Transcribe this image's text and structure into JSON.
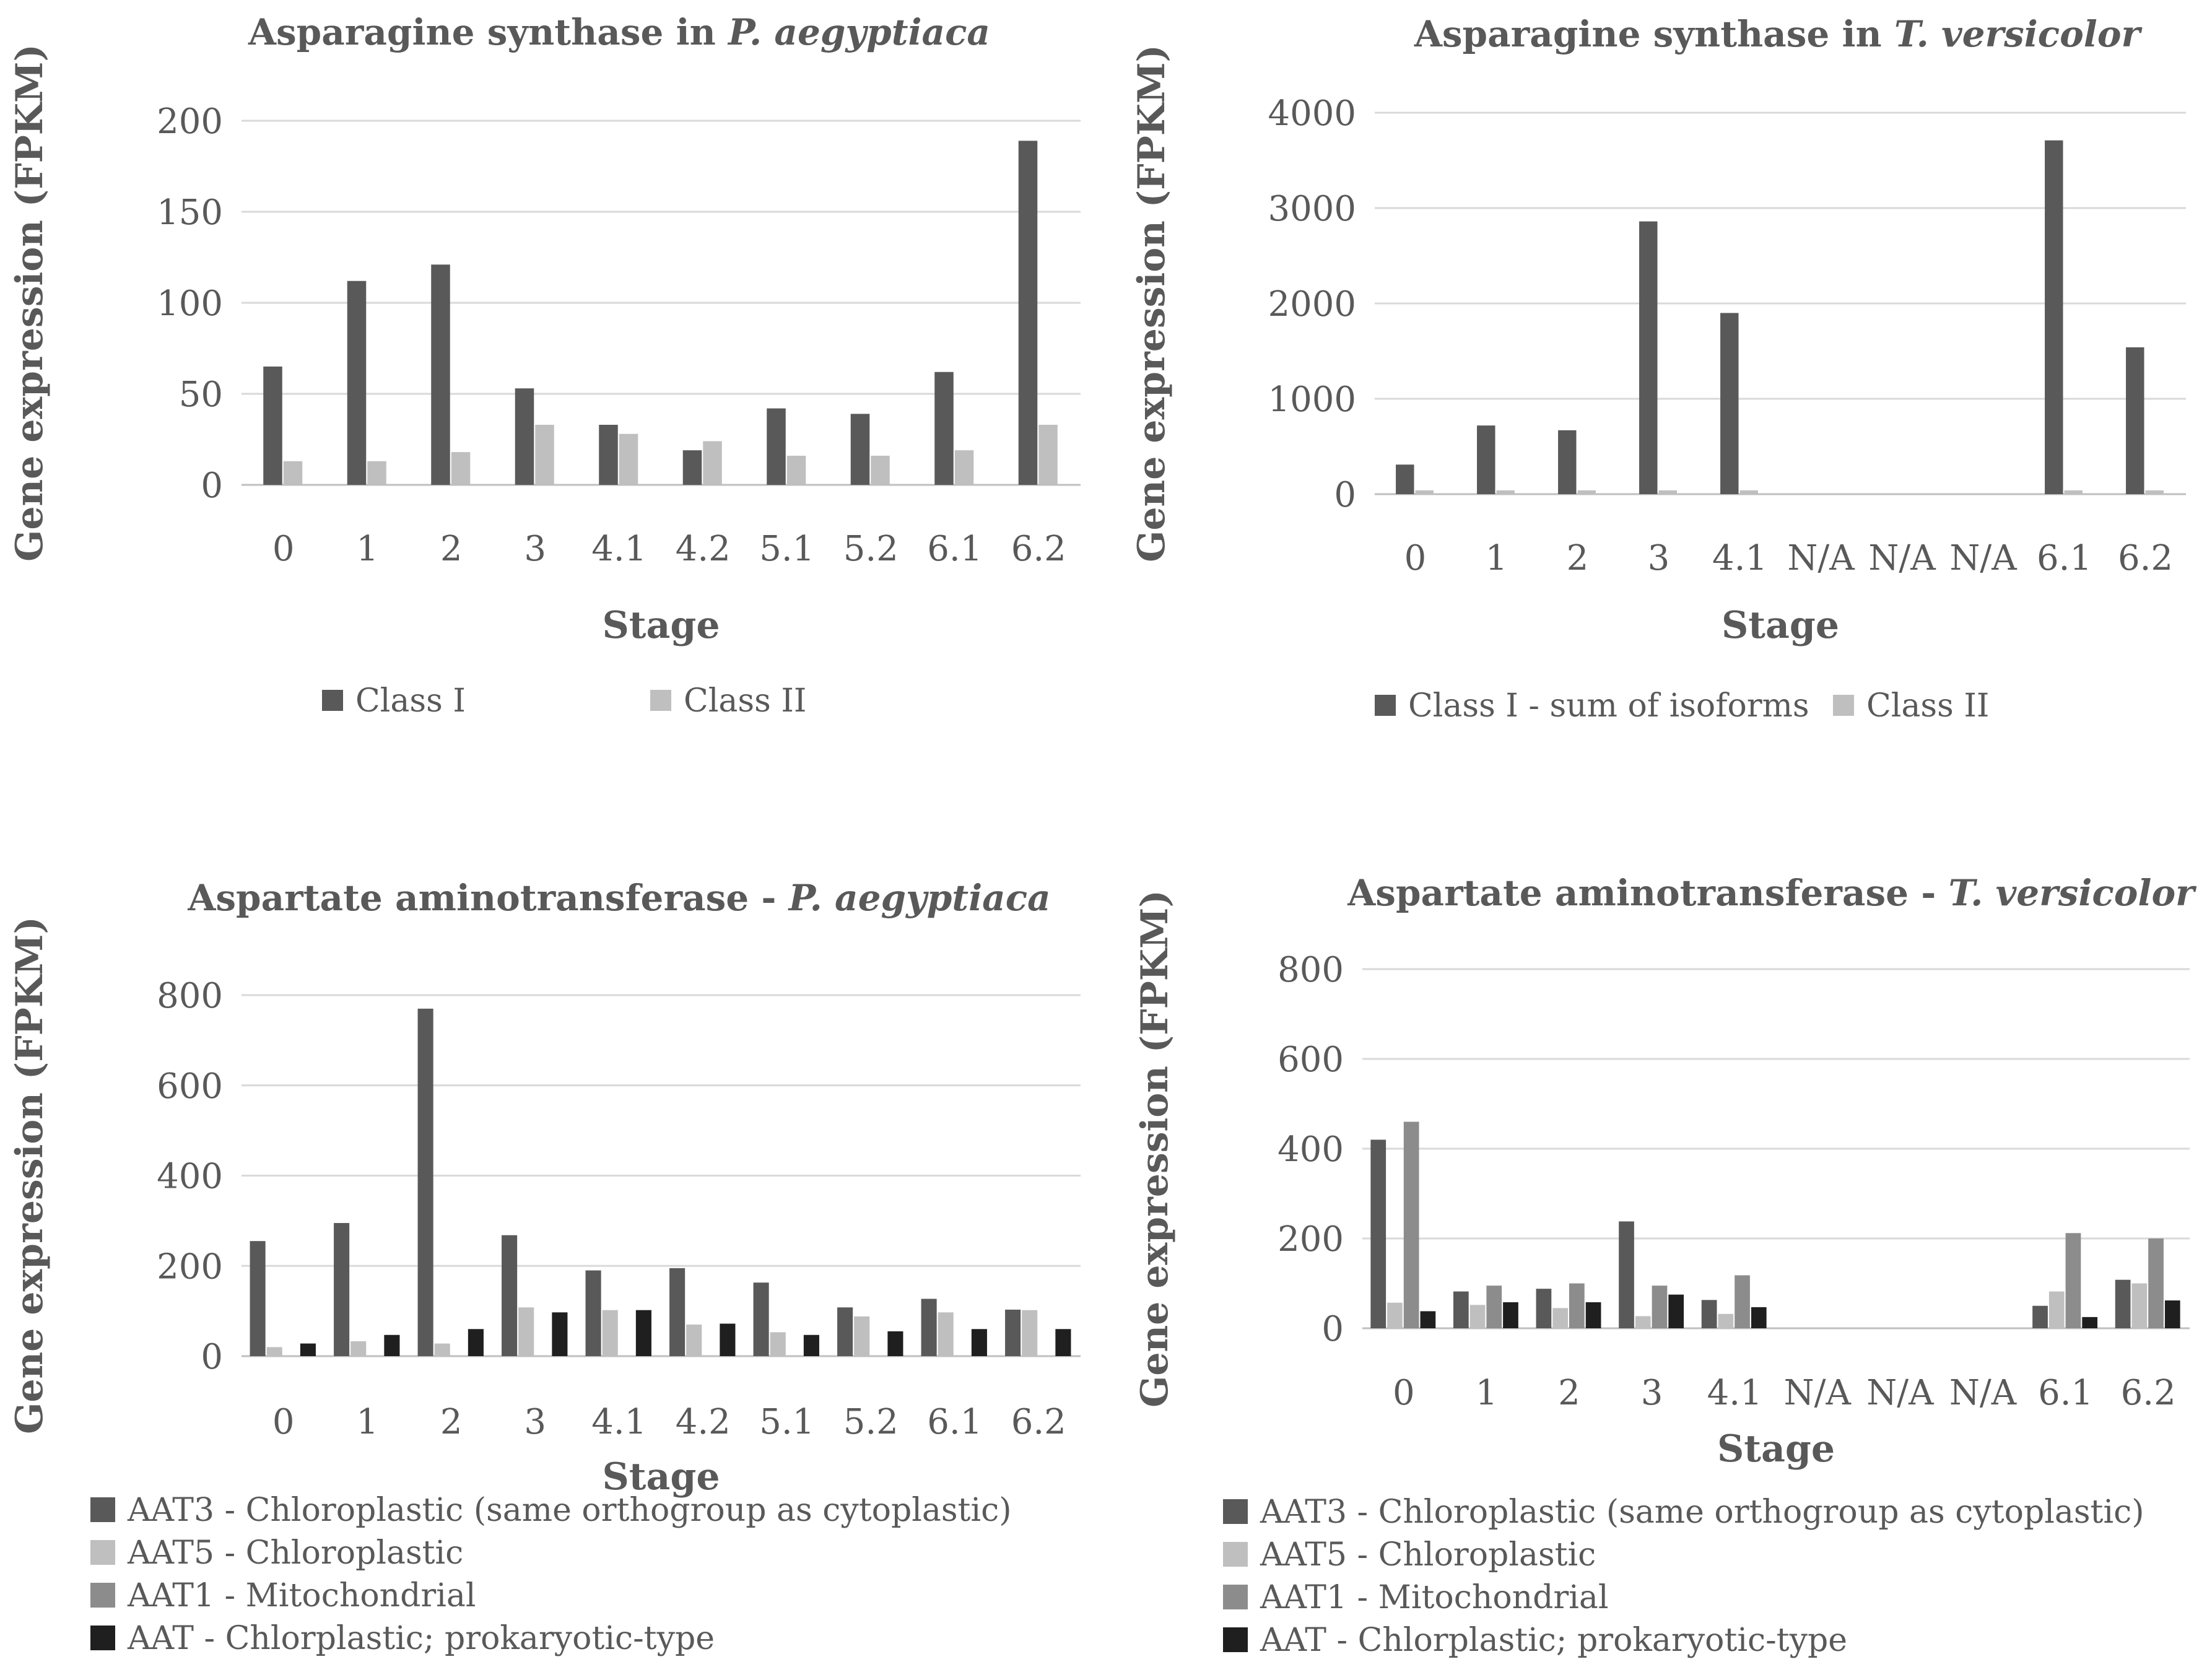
{
  "colors": {
    "c1": "#595959",
    "c2": "#bfbfbf",
    "c3": "#8c8c8c",
    "c4": "#1f1f1f"
  },
  "chart_data": [
    {
      "type": "bar",
      "title": "Asparagine synthase in ",
      "title_species": "P. aegyptiaca",
      "xlabel": "Stage",
      "ylabel": "Gene expression (FPKM)",
      "ylim": [
        0,
        200
      ],
      "yticks": [
        0,
        50,
        100,
        150,
        200
      ],
      "categories": [
        "0",
        "1",
        "2",
        "3",
        "4.1",
        "4.2",
        "5.1",
        "5.2",
        "6.1",
        "6.2"
      ],
      "series": [
        {
          "name": "Class I",
          "color": "#595959",
          "values": [
            65,
            112,
            121,
            53,
            33,
            19,
            42,
            39,
            62,
            189
          ]
        },
        {
          "name": "Class II",
          "color": "#bfbfbf",
          "values": [
            13,
            13,
            18,
            33,
            28,
            24,
            16,
            16,
            19,
            33
          ]
        }
      ]
    },
    {
      "type": "bar",
      "title": "Asparagine synthase in ",
      "title_species": "T. versicolor",
      "xlabel": "Stage",
      "ylabel": "Gene expression (FPKM)",
      "ylim": [
        0,
        4000
      ],
      "yticks": [
        0,
        1000,
        2000,
        3000,
        4000
      ],
      "categories": [
        "0",
        "1",
        "2",
        "3",
        "4.1",
        "N/A",
        "N/A",
        "N/A",
        "6.1",
        "6.2"
      ],
      "series": [
        {
          "name": "Class I - sum of isoforms",
          "color": "#595959",
          "values": [
            310,
            720,
            670,
            2860,
            1900,
            0,
            0,
            0,
            3710,
            1540
          ]
        },
        {
          "name": "Class II",
          "color": "#bfbfbf",
          "values": [
            40,
            40,
            40,
            40,
            40,
            0,
            0,
            0,
            40,
            40
          ]
        }
      ]
    },
    {
      "type": "bar",
      "title": "Aspartate aminotransferase - ",
      "title_species": "P. aegyptiaca",
      "xlabel": "Stage",
      "ylabel": "Gene expression (FPKM)",
      "ylim": [
        0,
        800
      ],
      "yticks": [
        0,
        200,
        400,
        600,
        800
      ],
      "categories": [
        "0",
        "1",
        "2",
        "3",
        "4.1",
        "4.2",
        "5.1",
        "5.2",
        "6.1",
        "6.2"
      ],
      "series": [
        {
          "name": "AAT3 - Chloroplastic (same orthogroup as cytoplastic)",
          "color": "#595959",
          "values": [
            255,
            295,
            770,
            268,
            190,
            195,
            163,
            108,
            127,
            103
          ]
        },
        {
          "name": "AAT5 - Chloroplastic",
          "color": "#bfbfbf",
          "values": [
            20,
            33,
            28,
            108,
            102,
            70,
            53,
            88,
            97,
            102
          ]
        },
        {
          "name": "AAT1 - Mitochondrial",
          "color": "#8c8c8c",
          "values": [
            0,
            0,
            0,
            0,
            0,
            0,
            0,
            0,
            0,
            0
          ]
        },
        {
          "name": "AAT - Chlorplastic; prokaryotic-type",
          "color": "#1f1f1f",
          "values": [
            28,
            47,
            60,
            97,
            102,
            72,
            47,
            55,
            60,
            60
          ]
        }
      ]
    },
    {
      "type": "bar",
      "title": "Aspartate aminotransferase  - ",
      "title_species": "T. versicolor",
      "xlabel": "Stage",
      "ylabel": "Gene expression (FPKM)",
      "ylim": [
        0,
        800
      ],
      "yticks": [
        0,
        200,
        400,
        600,
        800
      ],
      "categories": [
        "0",
        "1",
        "2",
        "3",
        "4.1",
        "N/A",
        "N/A",
        "N/A",
        "6.1",
        "6.2"
      ],
      "series": [
        {
          "name": "AAT3 - Chloroplastic (same orthogroup as cytoplastic)",
          "color": "#595959",
          "values": [
            420,
            82,
            88,
            238,
            63,
            0,
            0,
            0,
            50,
            108
          ]
        },
        {
          "name": "AAT5 - Chloroplastic",
          "color": "#bfbfbf",
          "values": [
            57,
            52,
            45,
            27,
            32,
            0,
            0,
            0,
            82,
            100
          ]
        },
        {
          "name": "AAT1 - Mitochondrial",
          "color": "#8c8c8c",
          "values": [
            460,
            95,
            100,
            95,
            118,
            0,
            0,
            0,
            212,
            200
          ]
        },
        {
          "name": "AAT - Chlorplastic; prokaryotic-type",
          "color": "#1f1f1f",
          "values": [
            38,
            58,
            58,
            75,
            47,
            0,
            0,
            0,
            25,
            62
          ]
        }
      ]
    }
  ]
}
